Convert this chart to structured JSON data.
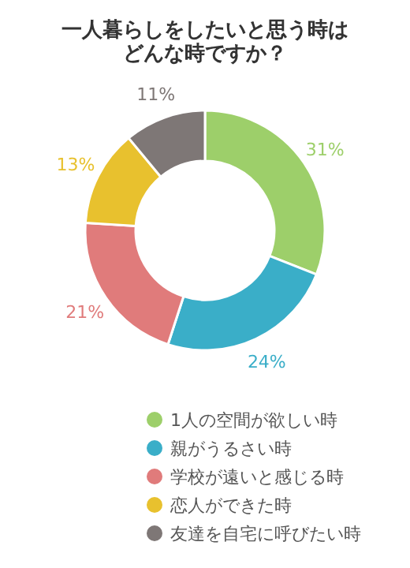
{
  "chart_data": {
    "type": "donut",
    "title": "一人暮らしをしたいと思う時はどんな時ですか？",
    "categories": [
      "1人の空間が欲しい時",
      "親がうるさい時",
      "学校が遠いと感じる時",
      "恋人ができた時",
      "友達を自宅に呼びたい時"
    ],
    "values": [
      31,
      24,
      21,
      13,
      11
    ],
    "value_labels": [
      "31%",
      "24%",
      "21%",
      "13%",
      "11%"
    ],
    "colors": [
      "#9dcf6a",
      "#3aaec8",
      "#e07b7b",
      "#e8c12e",
      "#7e7776"
    ],
    "legend": "bottom"
  }
}
